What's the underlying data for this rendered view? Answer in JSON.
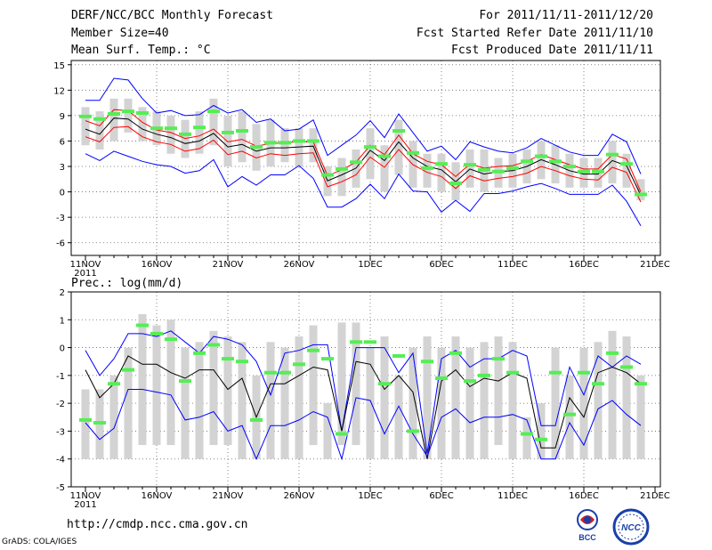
{
  "header": {
    "title": "DERF/NCC/BCC Monthly Forecast",
    "member_size": "Member Size=40",
    "variable": "Mean Surf. Temp.: °C",
    "period": "For 2011/11/11-2011/12/20",
    "started": "Fcst Started Refer Date 2011/11/10",
    "produced": "Fcst Produced Date 2011/11/11"
  },
  "footer": {
    "url": "http://cmdp.ncc.cma.gov.cn",
    "grads": "GrADS: COLA/IGES",
    "logo1_text": "BCC",
    "logo2_text": "NCC"
  },
  "colors": {
    "box": "#d3d3d3",
    "median": "#55ee55",
    "max": "#0000ff",
    "mean": "#000000",
    "spread": "#ff0000",
    "min": "#0000ff"
  },
  "chart_data": [
    {
      "type": "box-line",
      "title": "Mean Surf. Temp.: °C",
      "ylabel": "°C",
      "xlabel": "",
      "ylim": [
        -7.5,
        15.5
      ],
      "yticks": [
        -6,
        -3,
        0,
        3,
        6,
        9,
        12,
        15
      ],
      "xticks": [
        {
          "day": 1,
          "label": "11NOV",
          "sub": "2011"
        },
        {
          "day": 6,
          "label": "16NOV"
        },
        {
          "day": 11,
          "label": "21NOV"
        },
        {
          "day": 16,
          "label": "26NOV"
        },
        {
          "day": 21,
          "label": "1DEC"
        },
        {
          "day": 26,
          "label": "6DEC"
        },
        {
          "day": 31,
          "label": "11DEC"
        },
        {
          "day": 36,
          "label": "16DEC"
        },
        {
          "day": 41,
          "label": "21DEC"
        }
      ],
      "days": [
        1,
        2,
        3,
        4,
        5,
        6,
        7,
        8,
        9,
        10,
        11,
        12,
        13,
        14,
        15,
        16,
        17,
        18,
        19,
        20,
        21,
        22,
        23,
        24,
        25,
        26,
        27,
        28,
        29,
        30,
        31,
        32,
        33,
        34,
        35,
        36,
        37,
        38,
        39,
        40
      ],
      "box_low": [
        5.5,
        5.0,
        6.0,
        7.0,
        6.0,
        5.5,
        4.5,
        4.0,
        4.5,
        5.5,
        3.0,
        3.5,
        2.5,
        3.0,
        3.5,
        3.0,
        3.5,
        -0.5,
        -0.5,
        0.5,
        1.5,
        0.0,
        2.0,
        0.5,
        0.5,
        0.0,
        -1.0,
        0.5,
        0.0,
        0.5,
        0.5,
        1.0,
        1.5,
        1.0,
        0.5,
        0.5,
        0.5,
        1.0,
        0.5,
        -1.0
      ],
      "box_high": [
        10.0,
        9.5,
        11.0,
        11.0,
        10.0,
        9.5,
        9.0,
        8.5,
        9.5,
        11.0,
        9.0,
        9.5,
        8.0,
        8.5,
        7.5,
        7.5,
        7.5,
        3.0,
        4.0,
        5.0,
        7.5,
        5.5,
        8.5,
        6.0,
        4.5,
        4.5,
        3.5,
        5.0,
        5.0,
        4.0,
        4.5,
        5.0,
        6.0,
        5.5,
        4.5,
        4.0,
        4.0,
        6.0,
        4.5,
        1.5
      ],
      "series": [
        {
          "name": "max",
          "values": [
            10.8,
            10.8,
            13.4,
            13.2,
            11.0,
            9.3,
            9.6,
            9.0,
            9.1,
            10.2,
            9.3,
            9.7,
            8.2,
            8.6,
            7.2,
            7.4,
            8.5,
            4.3,
            5.5,
            6.7,
            8.4,
            6.4,
            9.2,
            7.0,
            4.8,
            5.4,
            3.8,
            5.9,
            5.3,
            4.8,
            4.6,
            5.2,
            6.3,
            5.5,
            4.7,
            4.3,
            4.3,
            6.8,
            5.9,
            2.1
          ]
        },
        {
          "name": "spread",
          "values": [
            8.4,
            7.8,
            9.7,
            9.6,
            8.2,
            7.3,
            7.0,
            6.3,
            6.6,
            7.4,
            5.9,
            6.2,
            5.4,
            5.7,
            5.8,
            5.9,
            5.9,
            1.9,
            2.6,
            3.5,
            5.5,
            4.4,
            6.7,
            4.5,
            3.6,
            3.2,
            1.8,
            3.3,
            2.8,
            3.0,
            3.1,
            3.6,
            4.4,
            3.8,
            3.2,
            2.7,
            2.7,
            4.4,
            3.9,
            0.0
          ]
        },
        {
          "name": "mean",
          "values": [
            7.4,
            6.8,
            8.7,
            8.6,
            7.4,
            6.8,
            6.4,
            5.7,
            6.0,
            6.9,
            5.3,
            5.6,
            4.8,
            5.2,
            5.2,
            5.3,
            5.4,
            1.3,
            2.0,
            2.8,
            4.9,
            3.7,
            5.9,
            4.0,
            3.0,
            2.6,
            1.2,
            2.7,
            2.1,
            2.4,
            2.5,
            3.0,
            3.8,
            3.2,
            2.5,
            2.1,
            2.1,
            3.7,
            3.1,
            -0.4
          ]
        },
        {
          "name": "lower",
          "values": [
            6.5,
            5.9,
            7.6,
            7.7,
            6.5,
            5.9,
            5.6,
            4.8,
            5.1,
            6.1,
            4.4,
            4.8,
            4.0,
            4.5,
            4.3,
            4.5,
            4.6,
            0.6,
            1.2,
            2.0,
            4.1,
            2.9,
            5.0,
            3.2,
            2.3,
            1.8,
            0.4,
            1.9,
            1.3,
            1.6,
            1.8,
            2.2,
            3.0,
            2.5,
            1.9,
            1.5,
            1.4,
            2.9,
            2.3,
            -1.2
          ]
        },
        {
          "name": "min",
          "values": [
            4.5,
            3.7,
            4.8,
            4.2,
            3.6,
            3.2,
            3.0,
            2.2,
            2.5,
            3.8,
            0.6,
            1.8,
            0.8,
            2.0,
            2.0,
            3.1,
            1.6,
            -1.8,
            -1.8,
            -0.8,
            0.9,
            -0.8,
            2.1,
            0.1,
            0.0,
            -2.4,
            -1.0,
            -2.3,
            -0.2,
            -0.2,
            0.1,
            0.6,
            1.0,
            0.4,
            -0.3,
            -0.3,
            -0.3,
            0.8,
            -1.1,
            -4.0
          ]
        },
        {
          "name": "median",
          "values": [
            8.9,
            8.6,
            9.2,
            9.5,
            9.3,
            7.5,
            7.5,
            6.8,
            7.6,
            9.5,
            7.0,
            7.2,
            5.3,
            5.8,
            5.8,
            6.0,
            6.0,
            2.0,
            2.7,
            3.5,
            5.3,
            4.2,
            7.2,
            4.6,
            2.8,
            3.3,
            1.0,
            3.2,
            2.6,
            2.4,
            2.8,
            3.6,
            4.2,
            3.6,
            3.0,
            2.4,
            2.4,
            4.4,
            3.3,
            -0.3
          ]
        }
      ]
    },
    {
      "type": "box-line",
      "title": "Prec.: log(mm/d)",
      "ylabel": "log(mm/d)",
      "xlabel": "",
      "ylim": [
        -5,
        2
      ],
      "yticks": [
        -5,
        -4,
        -3,
        -2,
        -1,
        0,
        1,
        2
      ],
      "xticks": [
        {
          "day": 1,
          "label": "11NOV",
          "sub": "2011"
        },
        {
          "day": 6,
          "label": "16NOV"
        },
        {
          "day": 11,
          "label": "21NOV"
        },
        {
          "day": 16,
          "label": "26NOV"
        },
        {
          "day": 21,
          "label": "1DEC"
        },
        {
          "day": 26,
          "label": "6DEC"
        },
        {
          "day": 31,
          "label": "11DEC"
        },
        {
          "day": 36,
          "label": "16DEC"
        },
        {
          "day": 41,
          "label": "21DEC"
        }
      ],
      "days": [
        1,
        2,
        3,
        4,
        5,
        6,
        7,
        8,
        9,
        10,
        11,
        12,
        13,
        14,
        15,
        16,
        17,
        18,
        19,
        20,
        21,
        22,
        23,
        24,
        25,
        26,
        27,
        28,
        29,
        30,
        31,
        32,
        33,
        34,
        35,
        36,
        37,
        38,
        39,
        40
      ],
      "box_low": [
        -4,
        -4,
        -4,
        -4,
        -3.5,
        -3.5,
        -3.5,
        -4,
        -4,
        -3.5,
        -3.5,
        -4,
        -4,
        -4,
        -4,
        -4,
        -3.5,
        -4,
        -3.5,
        -3.5,
        -4,
        -4,
        -4,
        -4,
        -4,
        -4,
        -4,
        -4,
        -4,
        -3.5,
        -4,
        -4,
        -4,
        -4,
        -4,
        -4,
        -4,
        -4,
        -4,
        -4
      ],
      "box_high": [
        -1.5,
        -1.5,
        -1,
        0,
        1.2,
        0.8,
        1,
        0,
        0.2,
        0.6,
        0.4,
        0.2,
        -1,
        0.2,
        0,
        0.4,
        0.8,
        -2,
        0.9,
        0.9,
        0,
        0.4,
        -1,
        0,
        0.4,
        0,
        0.4,
        0,
        0.2,
        0.4,
        0.2,
        -2.5,
        -2,
        0,
        -1,
        0,
        0.2,
        0.6,
        0.4,
        -1
      ],
      "series": [
        {
          "name": "max",
          "values": [
            -0.1,
            -1.0,
            -0.4,
            0.5,
            0.5,
            0.4,
            0.6,
            0.2,
            -0.2,
            0.4,
            0.3,
            0.1,
            -0.5,
            -1.7,
            -0.2,
            -0.1,
            0.1,
            0.1,
            -3.0,
            0.0,
            0.0,
            0.0,
            -0.9,
            -0.2,
            -3.8,
            -0.4,
            -0.1,
            -0.7,
            -0.4,
            -0.4,
            -0.1,
            -0.3,
            -2.8,
            -2.8,
            -0.7,
            -1.7,
            -0.3,
            -0.7,
            -0.3,
            -0.6
          ]
        },
        {
          "name": "mean",
          "values": [
            -0.8,
            -1.8,
            -1.3,
            -0.3,
            -0.6,
            -0.6,
            -0.9,
            -1.1,
            -0.8,
            -0.8,
            -1.5,
            -1.1,
            -2.5,
            -1.3,
            -1.3,
            -1.0,
            -0.7,
            -0.8,
            -3.0,
            -0.5,
            -0.6,
            -1.5,
            -1.0,
            -1.6,
            -4.0,
            -1.2,
            -0.8,
            -1.4,
            -1.1,
            -1.2,
            -0.9,
            -1.1,
            -3.6,
            -3.6,
            -1.8,
            -2.5,
            -0.9,
            -0.7,
            -0.9,
            -1.3
          ]
        },
        {
          "name": "min",
          "values": [
            -2.7,
            -3.3,
            -2.9,
            -1.5,
            -1.5,
            -1.6,
            -1.7,
            -2.6,
            -2.5,
            -2.3,
            -3.0,
            -2.8,
            -4.0,
            -2.8,
            -2.8,
            -2.6,
            -2.3,
            -2.5,
            -4.0,
            -1.8,
            -1.9,
            -3.1,
            -2.1,
            -3.1,
            -3.9,
            -2.5,
            -2.2,
            -2.7,
            -2.5,
            -2.5,
            -2.4,
            -2.6,
            -4.0,
            -4.0,
            -2.7,
            -3.5,
            -2.2,
            -1.9,
            -2.4,
            -2.8
          ]
        },
        {
          "name": "median",
          "values": [
            -2.6,
            -2.7,
            -1.3,
            -0.8,
            0.8,
            0.5,
            0.3,
            -1.2,
            -0.2,
            0.1,
            -0.4,
            -0.5,
            -2.6,
            -0.9,
            -0.9,
            -0.6,
            -0.1,
            -0.4,
            -3.1,
            0.2,
            0.2,
            -1.3,
            -0.3,
            -3.0,
            -0.5,
            -1.1,
            -0.2,
            -1.2,
            -1.0,
            -0.4,
            -0.9,
            -3.1,
            -3.3,
            -0.9,
            -2.4,
            -0.9,
            -1.3,
            -0.2,
            -0.7,
            -1.3
          ]
        }
      ]
    }
  ]
}
